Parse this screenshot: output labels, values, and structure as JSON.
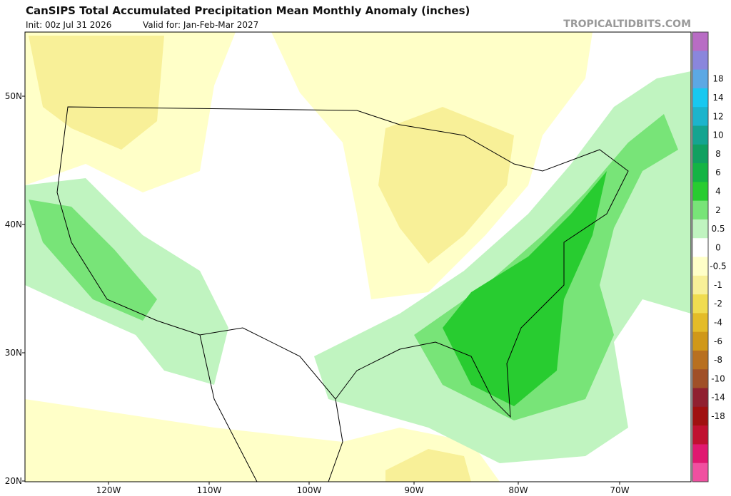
{
  "header": {
    "title": "CanSIPS Total Accumulated Precipitation Mean Monthly Anomaly (inches)",
    "init": "Init: 00z Jul 31 2026",
    "valid": "Valid for: Jan-Feb-Mar 2027",
    "watermark": "TROPICALTIDBITS.COM"
  },
  "map": {
    "lat_labels": [
      "50N",
      "40N",
      "30N",
      "20N"
    ],
    "lon_labels": [
      "120W",
      "110W",
      "100W",
      "90W",
      "80W",
      "70W"
    ]
  },
  "colorbar": {
    "labels": [
      18,
      14,
      12,
      10,
      8,
      6,
      4,
      2,
      0.5,
      0,
      -0.5,
      -1,
      -2,
      -4,
      -6,
      -8,
      -10,
      -14,
      -18
    ],
    "colors": [
      "#b86cc4",
      "#8a86dc",
      "#5ca8e4",
      "#18c8f0",
      "#1cb4cc",
      "#14a490",
      "#10a060",
      "#14b444",
      "#28cc30",
      "#78e478",
      "#c0f4c0",
      "#ffffff",
      "#ffffc8",
      "#f8f098",
      "#f0dc50",
      "#e4bc28",
      "#d09818",
      "#b87020",
      "#a05028",
      "#902030",
      "#a01010",
      "#c01030",
      "#e01870",
      "#f050a0"
    ]
  }
}
